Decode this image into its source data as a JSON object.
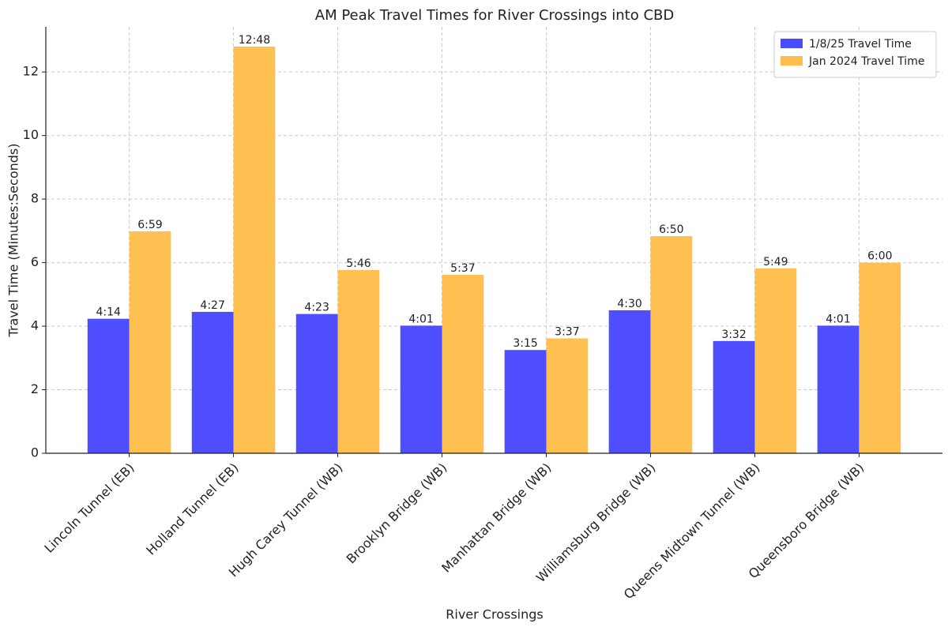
{
  "chart_data": {
    "type": "bar",
    "title": "AM Peak Travel Times for River Crossings into CBD",
    "x_label": "River Crossings",
    "y_label": "Travel Time (Minutes:Seconds)",
    "categories": [
      "Lincoln Tunnel (EB)",
      "Holland Tunnel (EB)",
      "Hugh Carey Tunnel (WB)",
      "Brooklyn Bridge (WB)",
      "Manhattan Bridge (WB)",
      "Williamsburg Bridge (WB)",
      "Queens Midtown Tunnel (WB)",
      "Queensboro Bridge (WB)"
    ],
    "series": [
      {
        "name": "1/8/25 Travel Time",
        "color": "#4a4aff",
        "values": [
          4.2333,
          4.45,
          4.3833,
          4.0167,
          3.25,
          4.5,
          3.5333,
          4.0167
        ],
        "value_labels": [
          "4:14",
          "4:27",
          "4:23",
          "4:01",
          "3:15",
          "4:30",
          "3:32",
          "4:01"
        ]
      },
      {
        "name": "Jan 2024 Travel Time",
        "color": "#ffbf4f",
        "values": [
          6.9833,
          12.8,
          5.7667,
          5.6167,
          3.6167,
          6.8333,
          5.8167,
          6.0
        ],
        "value_labels": [
          "6:59",
          "12:48",
          "5:46",
          "5:37",
          "3:37",
          "6:50",
          "5:49",
          "6:00"
        ]
      }
    ],
    "ylim": [
      0,
      13.42
    ],
    "yticks": [
      0,
      2,
      4,
      6,
      8,
      10,
      12
    ],
    "grid": true,
    "legend": "upper right"
  }
}
